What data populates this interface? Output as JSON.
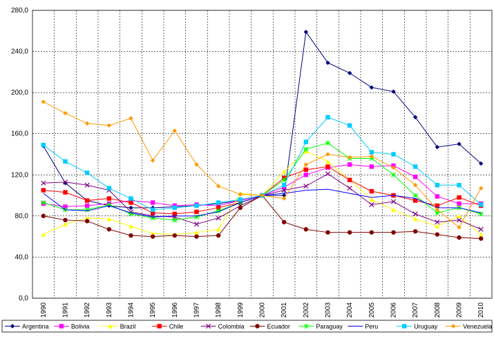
{
  "chart_data": {
    "type": "line",
    "categories": [
      "1990",
      "1991",
      "1992",
      "1993",
      "1994",
      "1995",
      "1996",
      "1997",
      "1998",
      "1999",
      "2000",
      "2001",
      "2002",
      "2003",
      "2004",
      "2005",
      "2006",
      "2007",
      "2008",
      "2009",
      "2010"
    ],
    "ylim": [
      0,
      280
    ],
    "yticks": [
      {
        "value": 0,
        "label": "0,0"
      },
      {
        "value": 40,
        "label": "40,0"
      },
      {
        "value": 80,
        "label": "80,0"
      },
      {
        "value": 120,
        "label": "120,0"
      },
      {
        "value": 160,
        "label": "160,0"
      },
      {
        "value": 200,
        "label": "200,0"
      },
      {
        "value": 240,
        "label": "240,0"
      },
      {
        "value": 280,
        "label": "280,0"
      }
    ],
    "grid": true,
    "legend": "bottom",
    "series": [
      {
        "name": "Argentina",
        "color": "#000080",
        "marker": "diamond",
        "values": [
          148,
          112,
          95,
          90,
          88,
          88,
          89,
          90,
          92,
          95,
          100,
          100,
          259,
          229,
          219,
          205,
          201,
          176,
          147,
          150,
          131
        ]
      },
      {
        "name": "Bolivia",
        "color": "#ff00ff",
        "marker": "square",
        "values": [
          92,
          89,
          90,
          92,
          95,
          93,
          90,
          91,
          90,
          95,
          100,
          108,
          120,
          127,
          130,
          128,
          129,
          118,
          99,
          92,
          92
        ]
      },
      {
        "name": "Brazil",
        "color": "#ffff00",
        "marker": "triangle",
        "values": [
          62,
          72,
          78,
          77,
          70,
          63,
          62,
          64,
          67,
          102,
          100,
          123,
          143,
          133,
          115,
          96,
          86,
          77,
          70,
          80,
          62
        ]
      },
      {
        "name": "Chile",
        "color": "#ff0000",
        "marker": "square",
        "values": [
          105,
          103,
          95,
          97,
          93,
          83,
          82,
          84,
          88,
          93,
          100,
          117,
          125,
          128,
          115,
          104,
          100,
          95,
          90,
          98,
          90
        ]
      },
      {
        "name": "Colombia",
        "color": "#800080",
        "marker": "x",
        "values": [
          112,
          113,
          110,
          105,
          84,
          80,
          79,
          72,
          78,
          90,
          100,
          105,
          109,
          121,
          107,
          91,
          94,
          82,
          74,
          76,
          67
        ]
      },
      {
        "name": "Ecuador",
        "color": "#800000",
        "marker": "circle",
        "values": [
          80,
          76,
          75,
          67,
          61,
          60,
          61,
          60,
          61,
          88,
          100,
          74,
          67,
          64,
          64,
          64,
          64,
          65,
          62,
          59,
          58
        ]
      },
      {
        "name": "Paraguay",
        "color": "#00ff00",
        "marker": "star",
        "values": [
          93,
          86,
          86,
          91,
          82,
          78,
          76,
          79,
          85,
          93,
          100,
          115,
          145,
          151,
          136,
          136,
          120,
          100,
          83,
          88,
          82
        ]
      },
      {
        "name": "Peru",
        "color": "#0000ff",
        "marker": "none",
        "values": [
          102,
          86,
          85,
          90,
          83,
          79,
          80,
          80,
          84,
          93,
          100,
          102,
          105,
          106,
          102,
          98,
          100,
          97,
          88,
          88,
          83
        ]
      },
      {
        "name": "Uruguay",
        "color": "#00ccff",
        "marker": "square",
        "values": [
          149,
          133,
          122,
          107,
          97,
          86,
          88,
          90,
          93,
          96,
          100,
          110,
          152,
          176,
          168,
          142,
          140,
          128,
          110,
          110,
          91
        ]
      },
      {
        "name": "Venezuela",
        "color": "#ff9900",
        "marker": "diamond",
        "values": [
          191,
          180,
          170,
          168,
          175,
          134,
          163,
          130,
          109,
          101,
          100,
          97,
          130,
          140,
          137,
          138,
          127,
          110,
          86,
          69,
          107
        ]
      }
    ]
  }
}
